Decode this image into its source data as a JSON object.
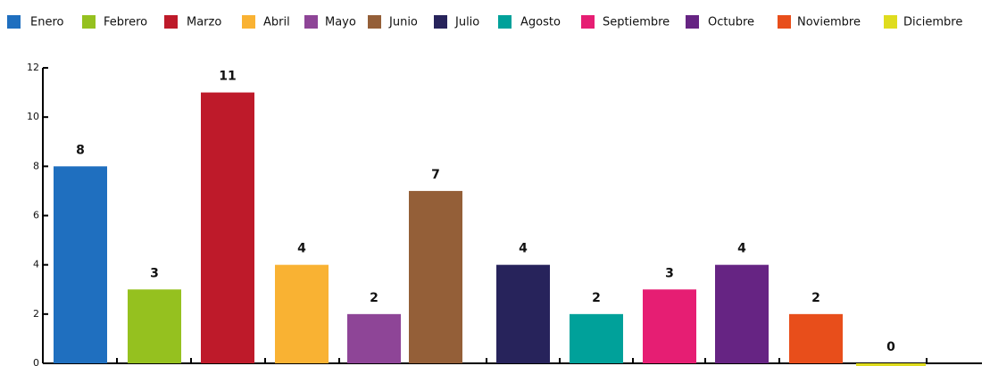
{
  "chart_data": {
    "type": "bar",
    "categories": [
      "Enero",
      "Febrero",
      "Marzo",
      "Abril",
      "Mayo",
      "Junio",
      "Julio",
      "Agosto",
      "Septiembre",
      "Octubre",
      "Noviembre",
      "Diciembre"
    ],
    "values": [
      8,
      3,
      11,
      4,
      2,
      7,
      4,
      2,
      3,
      4,
      2,
      0
    ],
    "colors": [
      "#1f6fbf",
      "#95c11f",
      "#be1a2a",
      "#f9b233",
      "#8e4597",
      "#945f38",
      "#27235b",
      "#00a19a",
      "#e61e73",
      "#662483",
      "#e84e1b",
      "#dfdc1e"
    ],
    "ylim": [
      0,
      12
    ],
    "yticks": [
      0,
      2,
      4,
      6,
      8,
      10,
      12
    ],
    "legend": "top"
  }
}
